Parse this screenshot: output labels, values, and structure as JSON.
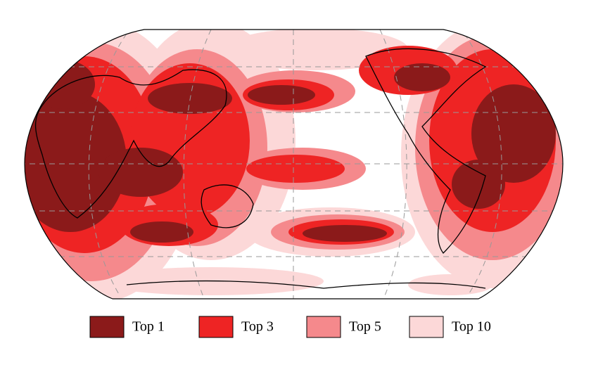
{
  "legend": [
    {
      "label": "Top 1",
      "color": "#8b1a1a"
    },
    {
      "label": "Top 3",
      "color": "#ee2424"
    },
    {
      "label": "Top 5",
      "color": "#f5898c"
    },
    {
      "label": "Top 10",
      "color": "#fcd8d8"
    }
  ]
}
